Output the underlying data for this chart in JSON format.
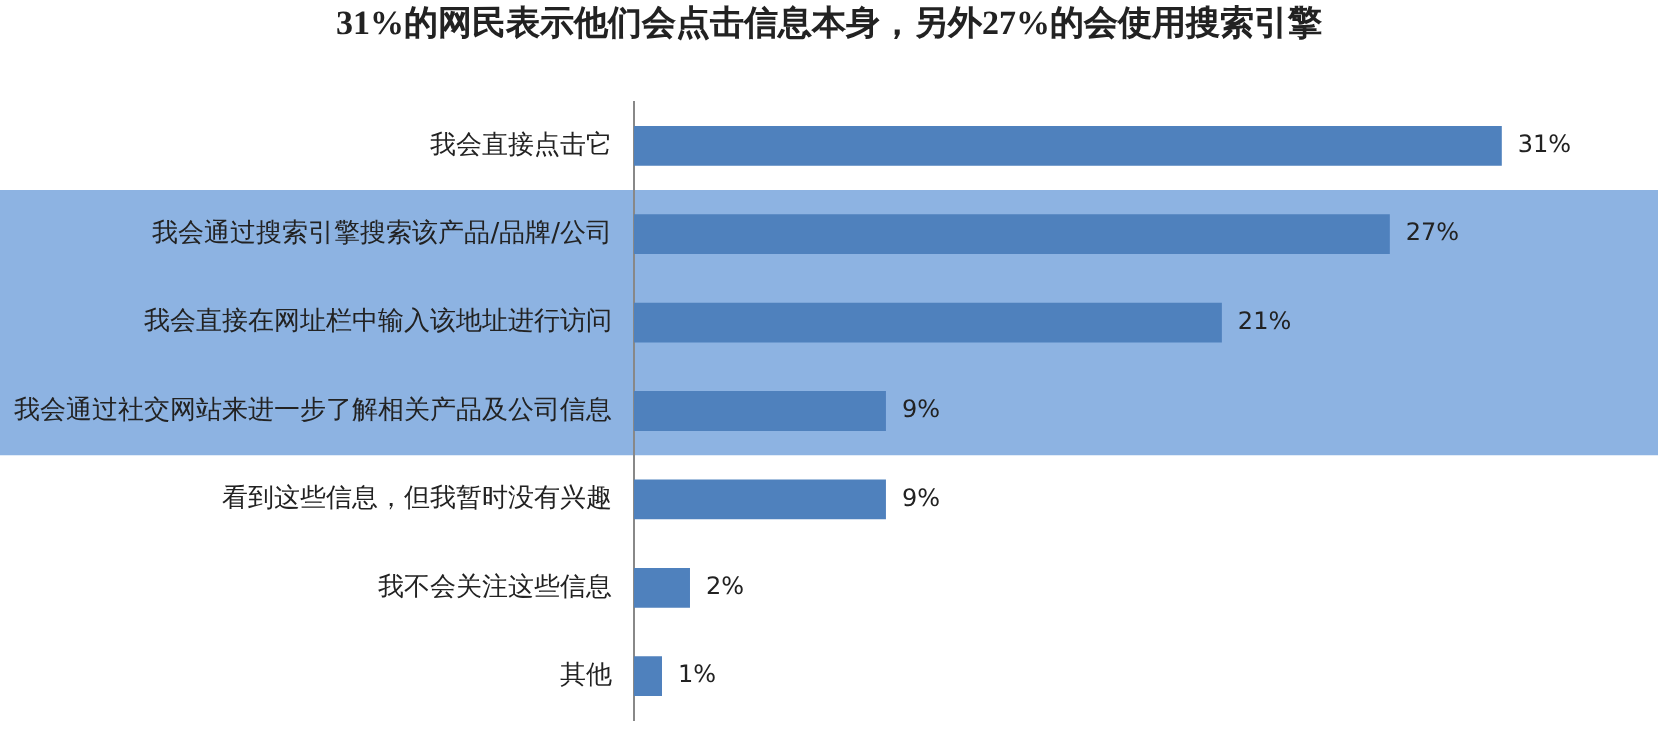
{
  "chart_data": {
    "type": "bar",
    "orientation": "horizontal",
    "title": "31%的网民表示他们会点击信息本身，另外27%的会使用搜索引擎",
    "categories": [
      "我会直接点击它",
      "我会通过搜索引擎搜索该产品/品牌/公司",
      "我会直接在网址栏中输入该地址进行访问",
      "我会通过社交网站来进一步了解相关产品及公司信息",
      "看到这些信息，但我暂时没有兴趣",
      "我不会关注这些信息",
      "其他"
    ],
    "values": [
      31,
      27,
      21,
      9,
      9,
      2,
      1
    ],
    "value_labels": [
      "31%",
      "27%",
      "21%",
      "9%",
      "9%",
      "2%",
      "1%"
    ],
    "color": "#4f81bd",
    "bands": [
      {
        "axis": "y",
        "from": "我会通过搜索引擎搜索该产品/品牌/公司",
        "to": "我会通过社交网站来进一步了解相关产品及公司信息",
        "color": "#8db3e2"
      }
    ],
    "legend": false
  }
}
